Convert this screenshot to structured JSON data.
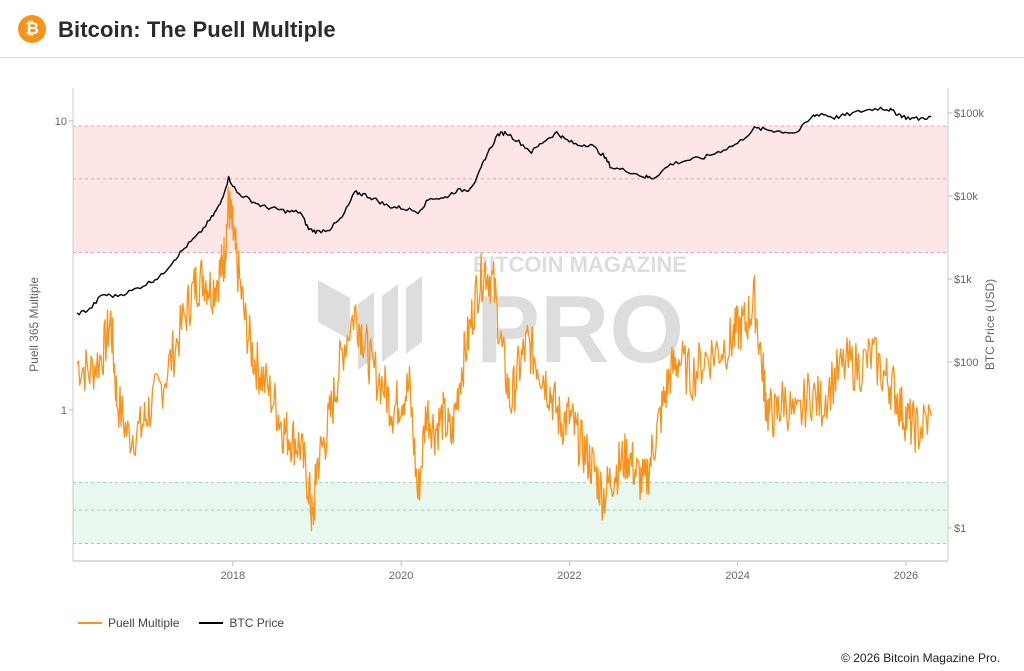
{
  "header": {
    "title": "Bitcoin: The Puell Multiple",
    "logo_glyph": "₿",
    "logo_color": "#f7931a"
  },
  "watermark": {
    "line1": "BITCOIN MAGAZINE",
    "line2": "PRO"
  },
  "legend": {
    "items": [
      {
        "label": "Puell Multiple",
        "color": "#f7931a"
      },
      {
        "label": "BTC Price",
        "color": "#000000"
      }
    ]
  },
  "footer": {
    "copyright": "© 2026 Bitcoin Magazine Pro."
  },
  "chart_data": {
    "type": "line",
    "title": "Bitcoin: The Puell Multiple",
    "xlabel": "",
    "x_ticks": [
      "2018",
      "2020",
      "2022",
      "2024",
      "2026"
    ],
    "x_range": [
      2016.1,
      2026.5
    ],
    "left_axis": {
      "label": "Puell 365 Multiple",
      "scale": "log",
      "ticks": [
        {
          "value": 1,
          "label": "1"
        },
        {
          "value": 10,
          "label": "10"
        }
      ],
      "range": [
        0.3,
        13
      ]
    },
    "right_axis": {
      "label": "BTC Price (USD)",
      "scale": "log",
      "ticks": [
        {
          "value": 1,
          "label": "$1"
        },
        {
          "value": 100,
          "label": "$100"
        },
        {
          "value": 1000,
          "label": "$1k"
        },
        {
          "value": 10000,
          "label": "$10k"
        },
        {
          "value": 100000,
          "label": "$100k"
        }
      ],
      "range": [
        0.4,
        200000
      ]
    },
    "bands": [
      {
        "name": "high",
        "from": 3.5,
        "to": 9.6,
        "color": "#ffe6e6",
        "border": "#e8a0a0"
      },
      {
        "name": "low",
        "from": 0.345,
        "to": 0.56,
        "color": "#e8f8ee",
        "border": "#8fd4a4"
      }
    ],
    "band_midlines": [
      6.3,
      0.45
    ],
    "grid": false,
    "legend_position": "bottom-left",
    "series": [
      {
        "name": "Puell Multiple",
        "axis": "left",
        "color": "#f7931a",
        "x": [
          2016.15,
          2016.3,
          2016.45,
          2016.55,
          2016.62,
          2016.75,
          2016.9,
          2017.0,
          2017.15,
          2017.3,
          2017.45,
          2017.55,
          2017.65,
          2017.75,
          2017.85,
          2017.9,
          2017.95,
          2018.0,
          2018.05,
          2018.15,
          2018.25,
          2018.35,
          2018.5,
          2018.6,
          2018.7,
          2018.8,
          2018.9,
          2018.95,
          2019.0,
          2019.1,
          2019.2,
          2019.3,
          2019.45,
          2019.55,
          2019.65,
          2019.8,
          2019.9,
          2020.0,
          2020.1,
          2020.2,
          2020.3,
          2020.4,
          2020.5,
          2020.6,
          2020.7,
          2020.8,
          2020.9,
          2021.0,
          2021.1,
          2021.2,
          2021.3,
          2021.4,
          2021.5,
          2021.6,
          2021.7,
          2021.8,
          2021.9,
          2022.0,
          2022.1,
          2022.2,
          2022.3,
          2022.4,
          2022.5,
          2022.6,
          2022.7,
          2022.8,
          2022.9,
          2023.0,
          2023.1,
          2023.2,
          2023.3,
          2023.45,
          2023.6,
          2023.75,
          2023.9,
          2024.0,
          2024.1,
          2024.2,
          2024.3,
          2024.35,
          2024.45,
          2024.55,
          2024.7,
          2024.85,
          2025.0,
          2025.15,
          2025.3,
          2025.45,
          2025.6,
          2025.75,
          2025.85,
          2025.95,
          2026.05,
          2026.15,
          2026.3
        ],
        "values": [
          1.45,
          1.35,
          1.55,
          2.05,
          1.1,
          0.82,
          0.85,
          1.0,
          1.2,
          1.6,
          2.2,
          2.7,
          2.9,
          2.6,
          3.0,
          3.4,
          5.2,
          4.1,
          3.2,
          2.0,
          1.5,
          1.3,
          1.05,
          0.85,
          0.8,
          0.75,
          0.55,
          0.4,
          0.65,
          0.8,
          1.1,
          1.6,
          2.2,
          1.8,
          1.4,
          1.2,
          1.0,
          1.1,
          1.2,
          0.5,
          1.0,
          0.85,
          0.95,
          0.8,
          1.3,
          1.8,
          2.6,
          3.1,
          2.7,
          1.6,
          1.05,
          1.4,
          1.7,
          1.5,
          1.3,
          1.1,
          0.9,
          0.95,
          0.8,
          0.7,
          0.62,
          0.5,
          0.58,
          0.65,
          0.7,
          0.6,
          0.55,
          0.75,
          1.0,
          1.35,
          1.5,
          1.3,
          1.5,
          1.6,
          1.7,
          1.9,
          2.0,
          2.4,
          1.35,
          1.0,
          0.95,
          1.1,
          0.9,
          1.15,
          1.05,
          1.3,
          1.45,
          1.4,
          1.55,
          1.3,
          1.2,
          1.0,
          0.9,
          0.85,
          0.95
        ]
      },
      {
        "name": "BTC Price",
        "axis": "right",
        "color": "#000000",
        "x": [
          2016.15,
          2016.3,
          2016.45,
          2016.6,
          2016.8,
          2017.0,
          2017.15,
          2017.3,
          2017.45,
          2017.6,
          2017.75,
          2017.85,
          2017.95,
          2018.05,
          2018.2,
          2018.35,
          2018.5,
          2018.65,
          2018.8,
          2018.9,
          2019.0,
          2019.15,
          2019.3,
          2019.45,
          2019.55,
          2019.7,
          2019.85,
          2020.0,
          2020.2,
          2020.35,
          2020.5,
          2020.65,
          2020.8,
          2020.9,
          2021.0,
          2021.15,
          2021.25,
          2021.4,
          2021.55,
          2021.7,
          2021.85,
          2021.95,
          2022.1,
          2022.25,
          2022.4,
          2022.5,
          2022.7,
          2022.9,
          2023.0,
          2023.2,
          2023.4,
          2023.6,
          2023.8,
          2024.0,
          2024.2,
          2024.35,
          2024.5,
          2024.7,
          2024.9,
          2025.0,
          2025.15,
          2025.3,
          2025.5,
          2025.7,
          2025.8,
          2025.9,
          2026.0,
          2026.15,
          2026.3
        ],
        "values": [
          380,
          430,
          650,
          620,
          720,
          900,
          1100,
          1700,
          2500,
          3500,
          5500,
          8000,
          16500,
          11000,
          9000,
          7500,
          7000,
          6500,
          6400,
          4000,
          3700,
          4000,
          5500,
          11000,
          10500,
          9000,
          7500,
          7200,
          6500,
          9500,
          9300,
          11500,
          12000,
          16000,
          29000,
          55000,
          58000,
          45000,
          34000,
          46000,
          58000,
          48000,
          41000,
          42000,
          31000,
          22000,
          20000,
          17000,
          16500,
          24000,
          27000,
          29000,
          35000,
          43000,
          65000,
          63000,
          60000,
          58000,
          92000,
          98000,
          88000,
          95000,
          107000,
          115000,
          110000,
          98000,
          88000,
          85000,
          90000
        ]
      }
    ]
  }
}
